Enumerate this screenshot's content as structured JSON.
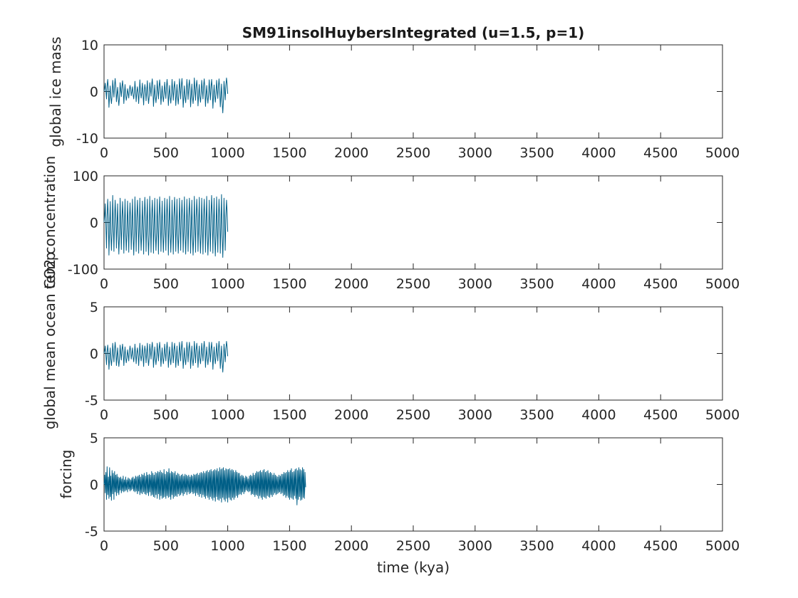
{
  "figure": {
    "title": "SM91insolHuybersIntegrated (u=1.5, p=1)",
    "xlabel": "time (kya)",
    "line_color": "#005f87"
  },
  "chart_data": [
    {
      "type": "line",
      "ylabel": "global ice mass",
      "xlim": [
        0,
        5000
      ],
      "ylim": [
        -10,
        10
      ],
      "xticks": [
        "0",
        "500",
        "1000",
        "1500",
        "2000",
        "2500",
        "3000",
        "3500",
        "4000",
        "4500",
        "5000"
      ],
      "yticks": [
        "-10",
        "0",
        "10"
      ],
      "ytick_values": [
        -10,
        0,
        10
      ],
      "series": [
        {
          "x_start": 0,
          "x_step": 10,
          "values": [
            0,
            1.8,
            -1.6,
            2.6,
            -3.4,
            1.2,
            -2.6,
            2.4,
            -1.2,
            2.8,
            -2.2,
            0.9,
            -3.0,
            1.9,
            -1.1,
            2.3,
            -2.6,
            1.5,
            -1.9,
            0.6,
            -1.4,
            1.3,
            -0.9,
            1.0,
            -1.6,
            2.2,
            -2.2,
            1.0,
            -2.6,
            2.5,
            -1.4,
            1.8,
            -2.9,
            1.5,
            -2.0,
            2.3,
            -2.6,
            1.9,
            -1.0,
            2.7,
            -3.2,
            1.4,
            -2.4,
            2.3,
            -1.6,
            2.5,
            -2.8,
            1.2,
            -2.2,
            2.0,
            -1.5,
            2.6,
            -3.0,
            1.3,
            -2.5,
            2.6,
            -1.9,
            2.2,
            -3.0,
            1.5,
            -2.7,
            2.7,
            -1.6,
            2.8,
            -3.4,
            1.2,
            -2.4,
            2.6,
            -1.7,
            2.5,
            -3.3,
            1.6,
            -2.6,
            2.9,
            -1.9,
            2.4,
            -3.1,
            1.5,
            -2.3,
            2.4,
            -1.6,
            2.7,
            -3.2,
            1.3,
            -2.5,
            2.5,
            -1.8,
            2.6,
            -3.6,
            1.4,
            -2.3,
            2.4,
            -1.5,
            2.7,
            -3.3,
            1.6,
            -4.6,
            2.2,
            -1.8,
            2.9,
            -0.5
          ]
        }
      ]
    },
    {
      "type": "line",
      "ylabel": "CO2 concentration",
      "xlim": [
        0,
        5000
      ],
      "ylim": [
        -100,
        100
      ],
      "xticks": [
        "0",
        "500",
        "1000",
        "1500",
        "2000",
        "2500",
        "3000",
        "3500",
        "4000",
        "4500",
        "5000"
      ],
      "yticks": [
        "-100",
        "0",
        "100"
      ],
      "ytick_values": [
        -100,
        0,
        100
      ],
      "series": [
        {
          "x_start": 0,
          "x_step": 10,
          "values": [
            0,
            40,
            -55,
            50,
            -70,
            45,
            -60,
            58,
            -62,
            48,
            -55,
            40,
            -68,
            52,
            -58,
            45,
            -66,
            50,
            -60,
            46,
            -64,
            42,
            -58,
            50,
            -70,
            55,
            -62,
            48,
            -66,
            52,
            -60,
            46,
            -68,
            54,
            -62,
            50,
            -70,
            56,
            -64,
            48,
            -66,
            52,
            -60,
            50,
            -68,
            55,
            -62,
            46,
            -64,
            52,
            -60,
            50,
            -70,
            56,
            -64,
            48,
            -68,
            54,
            -62,
            50,
            -66,
            52,
            -60,
            48,
            -64,
            55,
            -68,
            50,
            -62,
            52,
            -66,
            48,
            -70,
            56,
            -64,
            50,
            -62,
            54,
            -66,
            52,
            -68,
            50,
            -64,
            56,
            -70,
            48,
            -62,
            58,
            -66,
            52,
            -72,
            55,
            -64,
            50,
            -66,
            60,
            -75,
            52,
            -60,
            48,
            -20
          ]
        }
      ]
    },
    {
      "type": "line",
      "ylabel": "global mean ocean temp",
      "xlim": [
        0,
        5000
      ],
      "ylim": [
        -5,
        5
      ],
      "xticks": [
        "0",
        "500",
        "1000",
        "1500",
        "2000",
        "2500",
        "3000",
        "3500",
        "4000",
        "4500",
        "5000"
      ],
      "yticks": [
        "-5",
        "0",
        "5"
      ],
      "ytick_values": [
        -5,
        0,
        5
      ],
      "series": [
        {
          "x_start": 0,
          "x_step": 10,
          "values": [
            0,
            0.8,
            -1.2,
            0.9,
            -1.7,
            0.6,
            -1.3,
            1.1,
            -0.9,
            1.2,
            -1.3,
            0.6,
            -1.4,
            0.9,
            -0.7,
            1.0,
            -1.3,
            0.7,
            -1.0,
            0.4,
            -0.8,
            0.8,
            -0.6,
            0.6,
            -0.9,
            1.0,
            -1.1,
            0.6,
            -1.3,
            1.1,
            -0.8,
            0.9,
            -1.4,
            0.8,
            -1.0,
            1.1,
            -1.3,
            1.0,
            -0.6,
            1.2,
            -1.5,
            0.7,
            -1.2,
            1.1,
            -0.8,
            1.2,
            -1.4,
            0.6,
            -1.1,
            1.0,
            -0.8,
            1.2,
            -1.5,
            0.7,
            -1.2,
            1.2,
            -1.0,
            1.1,
            -1.5,
            0.8,
            -1.3,
            1.2,
            -0.8,
            1.3,
            -1.6,
            0.6,
            -1.2,
            1.2,
            -0.9,
            1.2,
            -1.6,
            0.8,
            -1.3,
            1.3,
            -1.0,
            1.1,
            -1.5,
            0.8,
            -1.1,
            1.1,
            -0.8,
            1.3,
            -1.5,
            0.7,
            -1.2,
            1.2,
            -0.9,
            1.2,
            -1.7,
            0.7,
            -1.1,
            1.1,
            -0.8,
            1.3,
            -1.6,
            0.8,
            -2.0,
            1.0,
            -0.9,
            1.3,
            -0.3
          ]
        }
      ]
    },
    {
      "type": "line",
      "ylabel": "forcing",
      "xlim": [
        0,
        5000
      ],
      "ylim": [
        -5,
        5
      ],
      "xticks": [
        "0",
        "500",
        "1000",
        "1500",
        "2000",
        "2500",
        "3000",
        "3500",
        "4000",
        "4500",
        "5000"
      ],
      "yticks": [
        "-5",
        "0",
        "5"
      ],
      "ytick_values": [
        -5,
        0,
        5
      ],
      "series": [
        {
          "x_start": 0,
          "x_step": 5,
          "values": [
            0.0,
            1.0,
            -0.9,
            1.3,
            -1.6,
            1.9,
            -1.1,
            0.8,
            -1.5,
            1.8,
            -1.3,
            0.9,
            -1.7,
            1.5,
            -1.0,
            1.2,
            -1.6,
            1.4,
            -0.8,
            1.0,
            -1.2,
            1.1,
            -0.9,
            0.8,
            -1.1,
            0.7,
            -0.6,
            0.8,
            -0.9,
            0.6,
            -0.7,
            0.9,
            -0.8,
            0.5,
            -0.7,
            0.8,
            -0.6,
            0.5,
            -0.8,
            0.7,
            -0.5,
            0.6,
            -0.7,
            0.5,
            -0.6,
            0.7,
            -0.5,
            0.8,
            -0.7,
            0.6,
            -0.8,
            0.9,
            -0.7,
            0.8,
            -1.0,
            0.9,
            -0.7,
            1.0,
            -1.1,
            0.8,
            -0.9,
            1.1,
            -1.0,
            1.0,
            -0.8,
            1.2,
            -1.0,
            0.9,
            -1.1,
            1.3,
            -0.9,
            1.0,
            -1.2,
            1.1,
            -0.8,
            1.0,
            -1.2,
            1.4,
            -1.1,
            1.2,
            -1.3,
            1.0,
            -1.4,
            1.3,
            -1.1,
            1.2,
            -1.5,
            1.4,
            -1.0,
            1.3,
            -1.6,
            1.5,
            -1.2,
            1.3,
            -1.5,
            1.2,
            -1.4,
            1.6,
            -1.3,
            1.1,
            -1.5,
            1.4,
            -1.2,
            1.3,
            -1.4,
            1.7,
            -1.3,
            1.2,
            -1.6,
            1.4,
            -1.1,
            1.3,
            -1.5,
            1.2,
            -1.3,
            1.4,
            -1.2,
            1.0,
            -1.3,
            1.2,
            -1.0,
            1.1,
            -1.2,
            0.9,
            -1.1,
            1.0,
            -0.9,
            1.1,
            -1.2,
            0.9,
            -1.0,
            1.1,
            -0.8,
            1.0,
            -1.1,
            0.9,
            -0.8,
            1.0,
            -1.0,
            0.8,
            -0.9,
            1.0,
            -0.8,
            0.9,
            -1.0,
            1.1,
            -0.9,
            1.0,
            -1.2,
            1.1,
            -0.9,
            1.2,
            -1.1,
            1.0,
            -1.3,
            1.2,
            -1.0,
            1.3,
            -1.4,
            1.2,
            -1.1,
            1.4,
            -1.3,
            1.2,
            -1.5,
            1.4,
            -1.2,
            1.5,
            -1.4,
            1.3,
            -1.6,
            1.5,
            -1.3,
            1.6,
            -1.5,
            1.4,
            -1.7,
            1.5,
            -1.4,
            1.6,
            -1.8,
            1.5,
            -1.3,
            1.7,
            -1.6,
            1.4,
            -1.7,
            1.8,
            -1.5,
            1.6,
            -1.9,
            1.7,
            -1.4,
            1.8,
            -1.6,
            1.5,
            -1.8,
            1.7,
            -1.5,
            1.6,
            -1.9,
            1.6,
            -1.4,
            1.7,
            -1.6,
            1.5,
            -1.7,
            1.6,
            -1.4,
            1.5,
            -1.6,
            1.3,
            -1.4,
            1.5,
            -1.2,
            1.3,
            -1.4,
            1.2,
            -1.1,
            1.2,
            -1.0,
            0.9,
            -1.1,
            1.0,
            -0.8,
            0.9,
            -1.0,
            0.7,
            -0.8,
            0.9,
            -0.6,
            0.8,
            -0.7,
            0.6,
            -0.8,
            0.9,
            -0.7,
            1.0,
            -1.1,
            0.9,
            -1.0,
            1.2,
            -1.1,
            1.0,
            -1.3,
            1.2,
            -1.1,
            1.4,
            -1.2,
            1.3,
            -1.5,
            1.4,
            -1.2,
            1.5,
            -1.4,
            1.3,
            -1.6,
            1.5,
            -1.3,
            1.6,
            -1.4,
            1.3,
            -1.5,
            1.4,
            -1.2,
            1.5,
            -1.3,
            1.2,
            -1.4,
            1.3,
            -1.1,
            1.2,
            -1.3,
            1.0,
            -1.1,
            1.2,
            -0.9,
            1.0,
            -1.1,
            0.9,
            -1.0,
            0.8,
            -0.9,
            1.0,
            -0.8,
            0.9,
            -1.0,
            1.1,
            -0.9,
            1.1,
            -1.2,
            1.3,
            -1.1,
            1.2,
            -1.4,
            1.3,
            -1.2,
            1.5,
            -1.4,
            1.3,
            -1.6,
            1.5,
            -1.4,
            1.7,
            -1.5,
            1.3,
            -1.6,
            1.4,
            -1.2,
            1.6,
            -1.5,
            1.7,
            -2.2,
            1.5,
            -1.6,
            1.8,
            -1.3,
            1.6,
            -1.7,
            1.5,
            -1.6,
            1.8,
            -1.4,
            1.6,
            -1.5,
            1.3,
            -0.3
          ]
        }
      ]
    }
  ]
}
